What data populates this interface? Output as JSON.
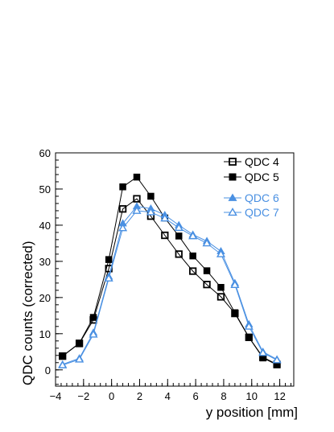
{
  "chart_data": {
    "type": "line",
    "xlabel": "y position  [mm]",
    "ylabel": "QDC counts (corrected)",
    "xlim": [
      -4.0,
      13.0
    ],
    "ylim": [
      -4.5,
      60
    ],
    "xticks": [
      -4,
      -2,
      0,
      2,
      4,
      6,
      8,
      10,
      12
    ],
    "yticks": [
      0,
      10,
      20,
      30,
      40,
      50,
      60
    ],
    "xtick_labels": [
      "−4",
      "−2",
      "0",
      "2",
      "4",
      "6",
      "8",
      "10",
      "12"
    ],
    "ytick_labels": [
      "0",
      "10",
      "20",
      "30",
      "40",
      "50",
      "60"
    ],
    "grid": false,
    "legend_placement": "top-right",
    "series": [
      {
        "name": "QDC 4",
        "color": "#000000",
        "marker": "open-square",
        "x": [
          -3.5,
          -2.3,
          -1.3,
          -0.2,
          0.8,
          1.8,
          2.8,
          3.8,
          4.8,
          5.8,
          6.8,
          7.8,
          8.8,
          9.8,
          10.8,
          11.8
        ],
        "y": [
          3.8,
          7.3,
          13.8,
          28.0,
          44.5,
          47.3,
          42.5,
          37.2,
          32.0,
          27.3,
          23.6,
          20.2,
          15.6,
          9.0,
          3.5,
          1.5
        ]
      },
      {
        "name": "QDC 5",
        "color": "#000000",
        "marker": "filled-square",
        "x": [
          -3.5,
          -2.3,
          -1.3,
          -0.2,
          0.8,
          1.8,
          2.8,
          3.8,
          4.8,
          5.8,
          6.8,
          7.8,
          8.8,
          9.8,
          10.8,
          11.8
        ],
        "y": [
          3.8,
          7.4,
          14.5,
          30.5,
          50.6,
          53.3,
          48.0,
          42.0,
          37.0,
          31.5,
          27.4,
          22.8,
          15.8,
          9.0,
          3.3,
          1.4
        ]
      },
      {
        "name": "QDC 6",
        "color": "#4a90e2",
        "marker": "filled-triangle",
        "x": [
          -3.5,
          -2.3,
          -1.3,
          -0.2,
          0.8,
          1.8,
          2.8,
          3.8,
          4.8,
          5.8,
          6.8,
          7.8,
          8.8,
          9.8,
          10.8,
          11.8
        ],
        "y": [
          1.5,
          3.2,
          10.3,
          25.8,
          40.5,
          45.2,
          44.6,
          42.8,
          40.0,
          37.4,
          35.6,
          32.8,
          24.0,
          12.6,
          5.0,
          2.9
        ]
      },
      {
        "name": "QDC 7",
        "color": "#4a90e2",
        "marker": "open-triangle",
        "x": [
          -3.5,
          -2.3,
          -1.3,
          -0.2,
          0.8,
          1.8,
          2.8,
          3.8,
          4.8,
          5.8,
          6.8,
          7.8,
          8.8,
          9.8,
          10.8,
          11.8
        ],
        "y": [
          1.3,
          2.9,
          9.8,
          25.3,
          39.2,
          44.0,
          43.6,
          41.9,
          39.3,
          37.0,
          35.0,
          32.0,
          23.5,
          12.0,
          4.7,
          2.7
        ]
      }
    ]
  }
}
